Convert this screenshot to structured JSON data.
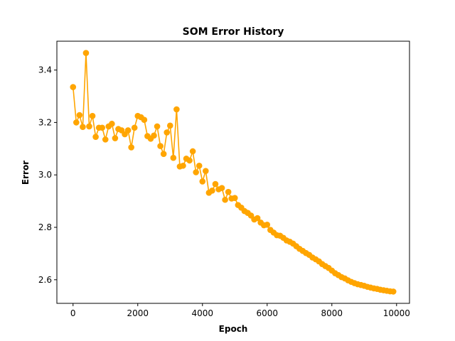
{
  "chart_data": {
    "type": "line",
    "title": "SOM Error History",
    "xlabel": "Epoch",
    "ylabel": "Error",
    "xlim": [
      -500,
      10400
    ],
    "ylim": [
      2.51,
      3.51
    ],
    "xticks": [
      0,
      2000,
      4000,
      6000,
      8000,
      10000
    ],
    "xtick_labels": [
      "0",
      "2000",
      "4000",
      "6000",
      "8000",
      "10000"
    ],
    "yticks": [
      2.6,
      2.8,
      3.0,
      3.2,
      3.4
    ],
    "ytick_labels": [
      "2.6",
      "2.8",
      "3.0",
      "3.2",
      "3.4"
    ],
    "grid": false,
    "legend": "none",
    "series": [
      {
        "color": "#ffa500",
        "marker": "circle",
        "x": [
          0,
          100,
          200,
          300,
          400,
          500,
          600,
          700,
          800,
          900,
          1000,
          1100,
          1200,
          1300,
          1400,
          1500,
          1600,
          1700,
          1800,
          1900,
          2000,
          2100,
          2200,
          2300,
          2400,
          2500,
          2600,
          2700,
          2800,
          2900,
          3000,
          3100,
          3200,
          3300,
          3400,
          3500,
          3600,
          3700,
          3800,
          3900,
          4000,
          4100,
          4200,
          4300,
          4400,
          4500,
          4600,
          4700,
          4800,
          4900,
          5000,
          5100,
          5200,
          5300,
          5400,
          5500,
          5600,
          5700,
          5800,
          5900,
          6000,
          6100,
          6200,
          6300,
          6400,
          6500,
          6600,
          6700,
          6800,
          6900,
          7000,
          7100,
          7200,
          7300,
          7400,
          7500,
          7600,
          7700,
          7800,
          7900,
          8000,
          8100,
          8200,
          8300,
          8400,
          8500,
          8600,
          8700,
          8800,
          8900,
          9000,
          9100,
          9200,
          9300,
          9400,
          9500,
          9600,
          9700,
          9800,
          9900
        ],
        "y": [
          3.335,
          3.2,
          3.228,
          3.183,
          3.465,
          3.185,
          3.225,
          3.145,
          3.18,
          3.18,
          3.135,
          3.185,
          3.195,
          3.14,
          3.175,
          3.17,
          3.155,
          3.17,
          3.105,
          3.18,
          3.225,
          3.22,
          3.21,
          3.148,
          3.138,
          3.15,
          3.185,
          3.11,
          3.08,
          3.162,
          3.188,
          3.065,
          3.25,
          3.032,
          3.035,
          3.062,
          3.055,
          3.09,
          3.01,
          3.035,
          2.975,
          3.015,
          2.932,
          2.94,
          2.965,
          2.945,
          2.95,
          2.905,
          2.935,
          2.91,
          2.912,
          2.885,
          2.875,
          2.862,
          2.855,
          2.845,
          2.83,
          2.835,
          2.818,
          2.808,
          2.81,
          2.79,
          2.78,
          2.77,
          2.768,
          2.76,
          2.75,
          2.745,
          2.738,
          2.728,
          2.718,
          2.71,
          2.702,
          2.695,
          2.685,
          2.678,
          2.67,
          2.66,
          2.652,
          2.645,
          2.635,
          2.625,
          2.618,
          2.61,
          2.605,
          2.598,
          2.592,
          2.587,
          2.583,
          2.58,
          2.577,
          2.573,
          2.57,
          2.567,
          2.565,
          2.562,
          2.56,
          2.558,
          2.556,
          2.555
        ]
      }
    ]
  }
}
